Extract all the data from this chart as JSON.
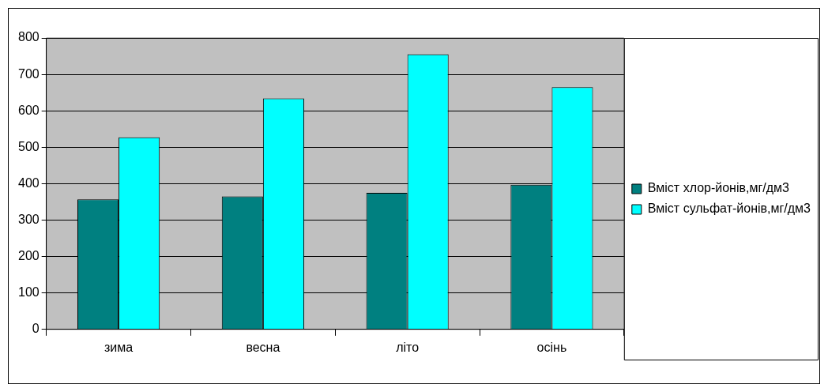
{
  "chart_data": {
    "type": "bar",
    "categories": [
      "зима",
      "весна",
      "літо",
      "осінь"
    ],
    "series": [
      {
        "name": "Вміст хлор-йонів,мг/дм3",
        "color": "#008080",
        "values": [
          357,
          365,
          375,
          397
        ]
      },
      {
        "name": "Вміст сульфат-йонів,мг/дм3",
        "color": "#00ffff",
        "values": [
          527,
          634,
          755,
          665
        ]
      }
    ],
    "ylim": [
      0,
      800
    ],
    "yticks": [
      0,
      100,
      200,
      300,
      400,
      500,
      600,
      700,
      800
    ],
    "grid": "y",
    "legend": "right"
  }
}
